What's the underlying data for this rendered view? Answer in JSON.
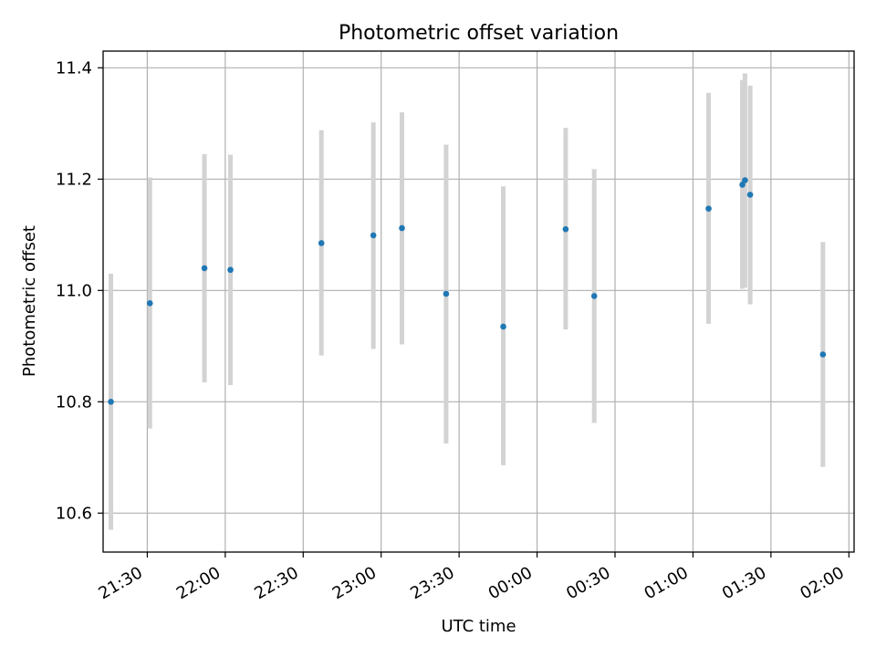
{
  "chart_data": {
    "type": "scatter",
    "title": "Photometric offset variation",
    "xlabel": "UTC time",
    "ylabel": "Photometric offset",
    "x_axis_kind": "time",
    "xlim": [
      "21:13",
      "02:02"
    ],
    "ylim": [
      10.53,
      11.43
    ],
    "grid": true,
    "xticks": [
      {
        "time": "21:30",
        "label": "21:30"
      },
      {
        "time": "22:00",
        "label": "22:00"
      },
      {
        "time": "22:30",
        "label": "22:30"
      },
      {
        "time": "23:00",
        "label": "23:00"
      },
      {
        "time": "23:30",
        "label": "23:30"
      },
      {
        "time": "00:00",
        "label": "00:00"
      },
      {
        "time": "00:30",
        "label": "00:30"
      },
      {
        "time": "01:00",
        "label": "01:00"
      },
      {
        "time": "01:30",
        "label": "01:30"
      },
      {
        "time": "02:00",
        "label": "02:00"
      }
    ],
    "yticks": [
      {
        "value": 10.6,
        "label": "10.6"
      },
      {
        "value": 10.8,
        "label": "10.8"
      },
      {
        "value": 11.0,
        "label": "11.0"
      },
      {
        "value": 11.2,
        "label": "11.2"
      },
      {
        "value": 11.4,
        "label": "11.4"
      }
    ],
    "points": [
      {
        "time": "21:16",
        "y": 10.8,
        "ylow": 10.57,
        "yhigh": 11.03
      },
      {
        "time": "21:31",
        "y": 10.977,
        "ylow": 10.752,
        "yhigh": 11.203
      },
      {
        "time": "21:52",
        "y": 11.04,
        "ylow": 10.835,
        "yhigh": 11.245
      },
      {
        "time": "22:02",
        "y": 11.037,
        "ylow": 10.83,
        "yhigh": 11.244
      },
      {
        "time": "22:37",
        "y": 11.085,
        "ylow": 10.883,
        "yhigh": 11.288
      },
      {
        "time": "22:57",
        "y": 11.099,
        "ylow": 10.895,
        "yhigh": 11.302
      },
      {
        "time": "23:08",
        "y": 11.112,
        "ylow": 10.903,
        "yhigh": 11.32
      },
      {
        "time": "23:25",
        "y": 10.994,
        "ylow": 10.725,
        "yhigh": 11.262
      },
      {
        "time": "23:47",
        "y": 10.935,
        "ylow": 10.686,
        "yhigh": 11.187
      },
      {
        "time": "00:11",
        "y": 11.11,
        "ylow": 10.93,
        "yhigh": 11.292
      },
      {
        "time": "00:22",
        "y": 10.99,
        "ylow": 10.762,
        "yhigh": 11.218
      },
      {
        "time": "01:06",
        "y": 11.147,
        "ylow": 10.94,
        "yhigh": 11.355
      },
      {
        "time": "01:19",
        "y": 11.19,
        "ylow": 11.003,
        "yhigh": 11.378
      },
      {
        "time": "01:20",
        "y": 11.198,
        "ylow": 11.005,
        "yhigh": 11.39
      },
      {
        "time": "01:22",
        "y": 11.172,
        "ylow": 10.975,
        "yhigh": 11.368
      },
      {
        "time": "01:50",
        "y": 10.885,
        "ylow": 10.683,
        "yhigh": 11.087
      }
    ],
    "colors": {
      "marker": "#1f77b4",
      "errorbar": "#d3d3d3",
      "grid": "#b0b0b0",
      "axis": "#000000"
    }
  }
}
